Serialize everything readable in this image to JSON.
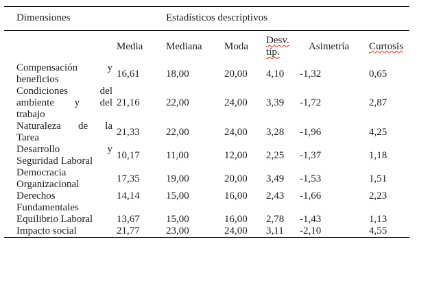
{
  "page": {
    "background": "#ffffff"
  },
  "colors": {
    "text": "#1d1d1d",
    "rule": "#111111",
    "spellcheck_underline": "#e02b20"
  },
  "table": {
    "dimensions_header": "Dimensiones",
    "group_header": "Estadísticos descriptivos",
    "columns": [
      {
        "key": "media",
        "label": "Media",
        "misspelled": false
      },
      {
        "key": "mediana",
        "label": "Mediana",
        "misspelled": false
      },
      {
        "key": "moda",
        "label": "Moda",
        "misspelled": false
      },
      {
        "key": "desv-tip",
        "label": "Desv. típ.",
        "misspelled": true
      },
      {
        "key": "asimetria",
        "label": "Asimetría",
        "misspelled": false
      },
      {
        "key": "curtosis",
        "label": "Curtosis",
        "misspelled": true
      }
    ],
    "rows": [
      {
        "dimension": "Compensación y beneficios",
        "dimension_lines": [
          [
            "Compensación",
            "y"
          ],
          [
            "beneficios"
          ]
        ],
        "values": [
          "16,61",
          "18,00",
          "20,00",
          "4,10",
          "-1,32",
          "0,65"
        ],
        "values_valign": "middle"
      },
      {
        "dimension": "Condiciones del ambiente y del trabajo",
        "dimension_lines": [
          [
            "Condiciones",
            "del"
          ],
          [
            "ambiente",
            "y",
            "del"
          ],
          [
            "trabajo"
          ]
        ],
        "values": [
          "21,16",
          "22,00",
          "24,00",
          "3,39",
          "-1,72",
          "2,87"
        ],
        "values_valign": "middle"
      },
      {
        "dimension": "Naturaleza de la Tarea",
        "dimension_lines": [
          [
            "Naturaleza",
            "de",
            "la"
          ],
          [
            "Tarea"
          ]
        ],
        "values": [
          "21,33",
          "22,00",
          "24,00",
          "3,28",
          "-1,96",
          "4,25"
        ],
        "values_valign": "middle"
      },
      {
        "dimension": "Desarrollo y Seguridad Laboral",
        "dimension_lines": [
          [
            "Desarrollo",
            "y"
          ],
          [
            "Seguridad",
            "Laboral"
          ]
        ],
        "values": [
          "10,17",
          "11,00",
          "12,00",
          "2,25",
          "-1,37",
          "1,18"
        ],
        "values_valign": "middle"
      },
      {
        "dimension": "Democracia Organizacional",
        "dimension_lines": [
          [
            "Democracia"
          ],
          [
            "Organizacional"
          ]
        ],
        "values": [
          "17,35",
          "19,00",
          "20,00",
          "3,49",
          "-1,53",
          "1,51"
        ],
        "values_valign": "middle"
      },
      {
        "dimension": "Derechos Fundamentales",
        "dimension_lines": [
          [
            "Derechos"
          ],
          [
            "Fundamentales"
          ]
        ],
        "values": [
          "14,14",
          "15,00",
          "16,00",
          "2,43",
          "-1,66",
          "2,23"
        ],
        "values_valign": "top"
      },
      {
        "dimension": "Equilibrio Laboral",
        "dimension_lines": [
          [
            "Equilibrio",
            "Laboral"
          ]
        ],
        "values": [
          "13,67",
          "15,00",
          "16,00",
          "2,78",
          "-1,43",
          "1,13"
        ],
        "values_valign": "middle"
      },
      {
        "dimension": "Impacto social",
        "dimension_lines": [
          [
            "Impacto",
            "social"
          ]
        ],
        "values": [
          "21,77",
          "23,00",
          "24,00",
          "3,11",
          "-2,10",
          "4,55"
        ],
        "values_valign": "middle"
      }
    ]
  }
}
